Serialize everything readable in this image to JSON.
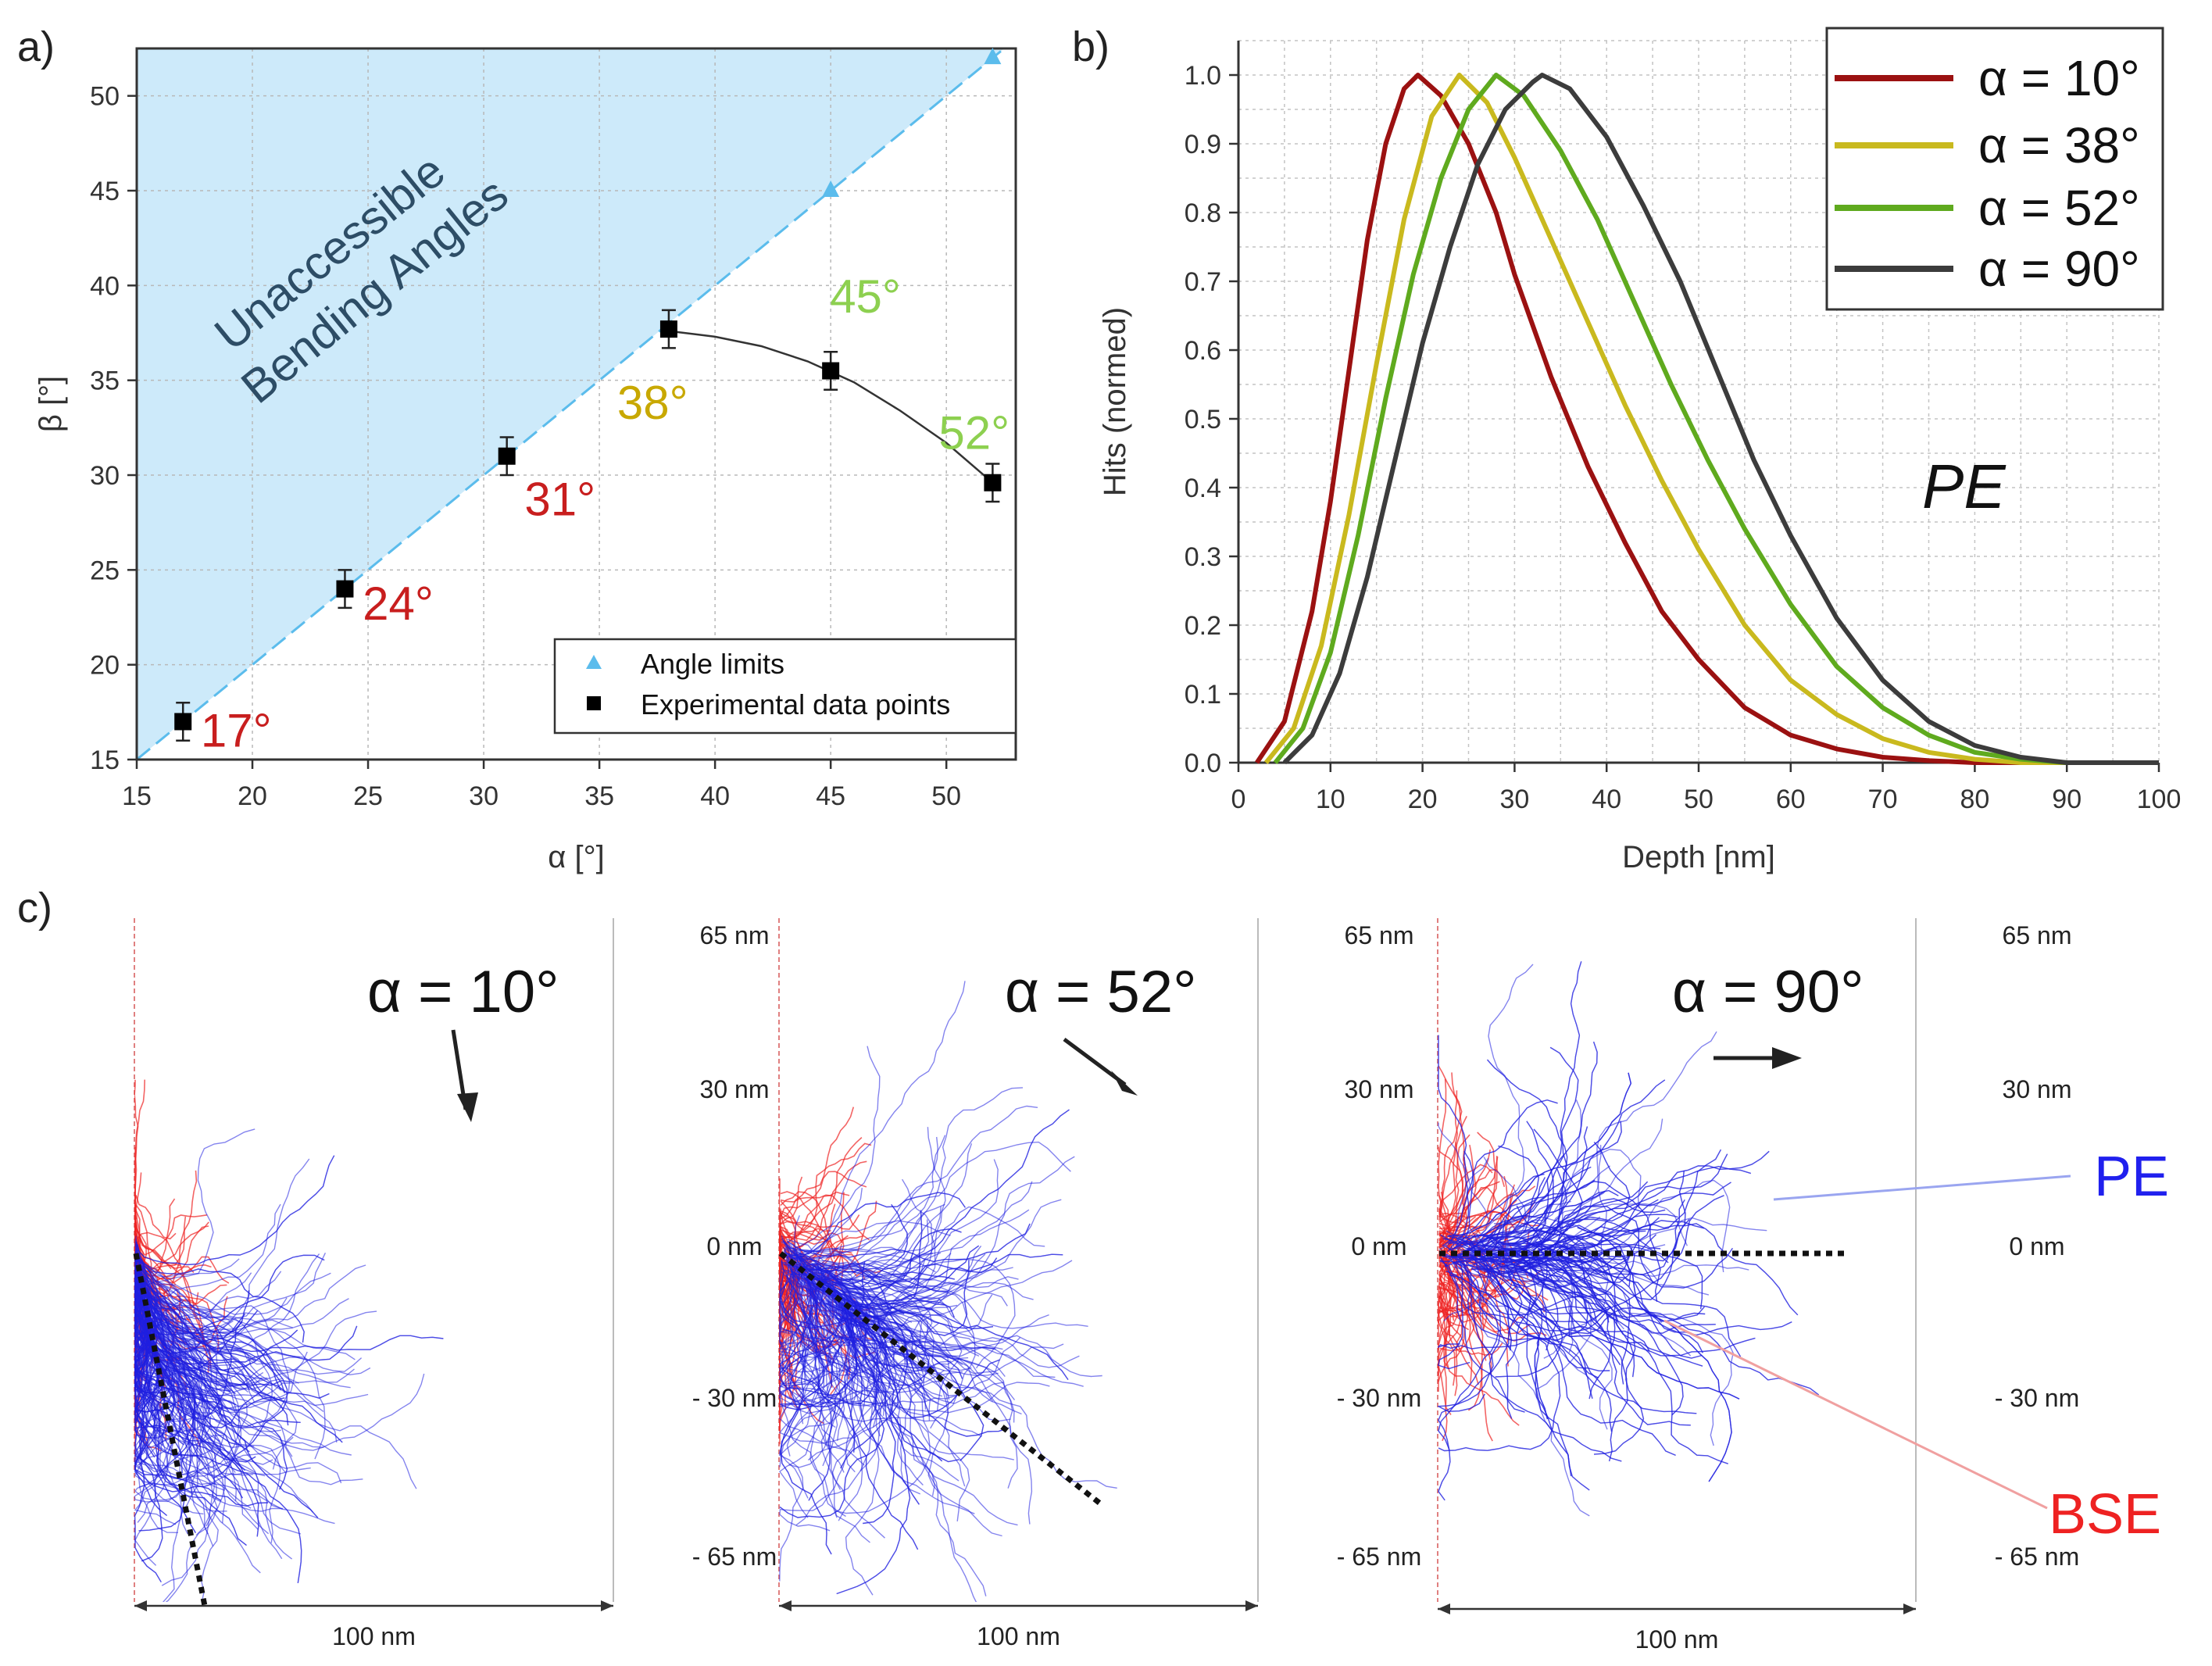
{
  "chart_data": [
    {
      "panel": "a)",
      "type": "scatter",
      "xlabel": "α [°]",
      "ylabel": "β [°]",
      "xlim": [
        15,
        53
      ],
      "ylim": [
        15,
        52.5
      ],
      "xticks": [
        15,
        20,
        25,
        30,
        35,
        40,
        45,
        50
      ],
      "yticks": [
        15,
        20,
        25,
        30,
        35,
        40,
        45,
        50
      ],
      "grid": true,
      "shaded_region_label_line1": "Unaccessible",
      "shaded_region_label_line2": "Bending Angles",
      "series": [
        {
          "name": "Angle limits",
          "marker": "triangle",
          "color": "#5bbcec",
          "x": [
            45,
            52
          ],
          "y": [
            45,
            52
          ]
        },
        {
          "name": "Experimental data points",
          "marker": "square",
          "color": "#000000",
          "x": [
            17,
            24,
            31,
            38,
            45,
            52
          ],
          "y": [
            17,
            24,
            31,
            37.7,
            35.5,
            29.6
          ],
          "yerr": [
            1.0,
            1.0,
            1.0,
            1.0,
            1.0,
            1.0
          ]
        }
      ],
      "fit_curve": {
        "x": [
          38,
          40,
          42,
          44,
          46,
          48,
          50,
          52
        ],
        "y": [
          37.6,
          37.3,
          36.8,
          36.0,
          34.9,
          33.4,
          31.7,
          29.6
        ]
      },
      "annotations": [
        {
          "text": "17°",
          "x": 19.3,
          "y": 16.5,
          "color": "#c81e1e"
        },
        {
          "text": "24°",
          "x": 26.3,
          "y": 23.2,
          "color": "#c81e1e"
        },
        {
          "text": "31°",
          "x": 33.3,
          "y": 28.7,
          "color": "#c81e1e"
        },
        {
          "text": "38°",
          "x": 37.3,
          "y": 33.8,
          "color": "#c8a800"
        },
        {
          "text": "45°",
          "x": 46.5,
          "y": 39.4,
          "color": "#8dd050"
        },
        {
          "text": "52°",
          "x": 51.2,
          "y": 32.2,
          "color": "#8dd050"
        }
      ],
      "legend": {
        "position": "bottom-right",
        "entries": [
          "Angle limits",
          "Experimental data points"
        ]
      }
    },
    {
      "panel": "b)",
      "type": "line",
      "xlabel": "Depth [nm]",
      "ylabel": "Hits (normed)",
      "xlim": [
        0,
        100
      ],
      "ylim": [
        0,
        1.05
      ],
      "xticks": [
        0,
        10,
        20,
        30,
        40,
        50,
        60,
        70,
        80,
        90,
        100
      ],
      "yticks": [
        0.0,
        0.1,
        0.2,
        0.3,
        0.4,
        0.5,
        0.6,
        0.7,
        0.8,
        0.9,
        1.0
      ],
      "grid": true,
      "annotation": "PE",
      "series": [
        {
          "name": "α = 10°",
          "color": "#9b1111",
          "x": [
            2,
            5,
            8,
            10,
            12,
            14,
            16,
            18,
            19.5,
            22,
            25,
            28,
            30,
            34,
            38,
            42,
            46,
            50,
            55,
            60,
            65,
            70,
            75,
            80
          ],
          "y": [
            0,
            0.06,
            0.22,
            0.38,
            0.57,
            0.76,
            0.9,
            0.98,
            1.0,
            0.97,
            0.9,
            0.8,
            0.71,
            0.56,
            0.43,
            0.32,
            0.22,
            0.15,
            0.08,
            0.04,
            0.02,
            0.008,
            0.003,
            0
          ]
        },
        {
          "name": "α = 38°",
          "color": "#c9b91e",
          "x": [
            3,
            6,
            9,
            12,
            15,
            18,
            21,
            24,
            27,
            30,
            34,
            38,
            42,
            46,
            50,
            55,
            60,
            65,
            70,
            75,
            80,
            85
          ],
          "y": [
            0,
            0.05,
            0.17,
            0.36,
            0.58,
            0.79,
            0.94,
            1.0,
            0.96,
            0.88,
            0.76,
            0.64,
            0.52,
            0.41,
            0.31,
            0.2,
            0.12,
            0.07,
            0.035,
            0.015,
            0.005,
            0
          ]
        },
        {
          "name": "α = 52°",
          "color": "#5faa1e",
          "x": [
            4,
            7,
            10,
            13,
            16,
            19,
            22,
            25,
            28,
            31,
            35,
            39,
            43,
            47,
            51,
            55,
            60,
            65,
            70,
            75,
            80,
            85,
            90
          ],
          "y": [
            0,
            0.05,
            0.16,
            0.33,
            0.53,
            0.71,
            0.85,
            0.95,
            1.0,
            0.97,
            0.89,
            0.79,
            0.67,
            0.55,
            0.44,
            0.34,
            0.23,
            0.14,
            0.08,
            0.04,
            0.015,
            0.005,
            0
          ]
        },
        {
          "name": "α = 90°",
          "color": "#3c3c3c",
          "x": [
            5,
            8,
            11,
            14,
            17,
            20,
            23,
            26,
            29,
            32,
            33,
            36,
            40,
            44,
            48,
            52,
            56,
            60,
            65,
            70,
            75,
            80,
            85,
            90
          ],
          "y": [
            0,
            0.04,
            0.13,
            0.27,
            0.44,
            0.61,
            0.75,
            0.87,
            0.95,
            0.99,
            1.0,
            0.98,
            0.91,
            0.81,
            0.7,
            0.57,
            0.44,
            0.33,
            0.21,
            0.12,
            0.06,
            0.025,
            0.008,
            0
          ]
        }
      ],
      "legend": {
        "position": "top-right",
        "entries": [
          "α = 10°",
          "α = 38°",
          "α = 52°",
          "α = 90°"
        ]
      }
    }
  ],
  "panel_labels": {
    "a": "a)",
    "b": "b)",
    "c": "c)"
  },
  "panel_c": {
    "subpanels": [
      {
        "title": "α = 10°",
        "direction_deg": 10
      },
      {
        "title": "α = 52°",
        "direction_deg": 52
      },
      {
        "title": "α = 90°",
        "direction_deg": 90
      }
    ],
    "scale_labels": [
      "65 nm",
      "30 nm",
      "0 nm",
      "- 30 nm",
      "- 65 nm"
    ],
    "width_label": "100 nm",
    "labels": {
      "pe": "PE",
      "bse": "BSE"
    },
    "colors": {
      "pe": "#1f1fe0",
      "bse": "#ee2222",
      "pe_label": "#2020ee",
      "bse_label": "#ee2222"
    }
  }
}
